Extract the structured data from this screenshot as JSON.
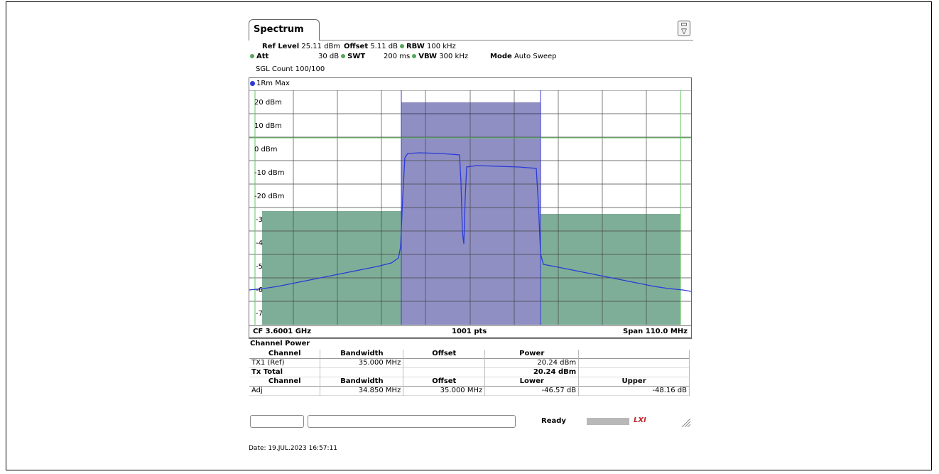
{
  "tab": {
    "label": "Spectrum"
  },
  "params": {
    "ref_level_label": "Ref Level",
    "ref_level_value": "25.11 dBm",
    "offset_label": "Offset",
    "offset_value": "5.11 dB",
    "rbw_label": "RBW",
    "rbw_value": "100 kHz",
    "att_label": "Att",
    "att_value": "30 dB",
    "swt_label": "SWT",
    "swt_value": "200 ms",
    "vbw_label": "VBW",
    "vbw_value": "300 kHz",
    "mode_label": "Mode",
    "mode_value": "Auto Sweep",
    "sgl_count": "SGL Count 100/100"
  },
  "trace": {
    "label": "1Rm Max",
    "color": "#2a3bd6"
  },
  "y_labels": [
    "20 dBm",
    "10 dBm",
    "0 dBm",
    "-10 dBm",
    "-20 dBm",
    "-3",
    "-4",
    "-5",
    "-6",
    "-7"
  ],
  "bottom_bar": {
    "cf": "CF 3.6001 GHz",
    "pts": "1001 pts",
    "span": "Span 110.0 MHz"
  },
  "channel_power": {
    "title": "Channel Power",
    "headers1": [
      "Channel",
      "Bandwidth",
      "Offset",
      "Power",
      ""
    ],
    "row_tx1": [
      "TX1 (Ref)",
      "35.000 MHz",
      "",
      "20.24 dBm",
      ""
    ],
    "row_total": [
      "Tx Total",
      "",
      "",
      "20.24 dBm",
      ""
    ],
    "headers2": [
      "Channel",
      "Bandwidth",
      "Offset",
      "Lower",
      "Upper"
    ],
    "row_adj": [
      "Adj",
      "34.850 MHz",
      "35.000 MHz",
      "-46.57 dB",
      "-48.16 dB"
    ]
  },
  "status": {
    "ready": "Ready",
    "lxi": "LXI"
  },
  "date": "Date: 19.JUL.2023  16:57:11",
  "colors": {
    "channel_fill": "#8f8fc4",
    "adjacent_fill": "#7fae98",
    "limit_line": "#5fc55f",
    "trace": "#2a3bd6"
  }
}
